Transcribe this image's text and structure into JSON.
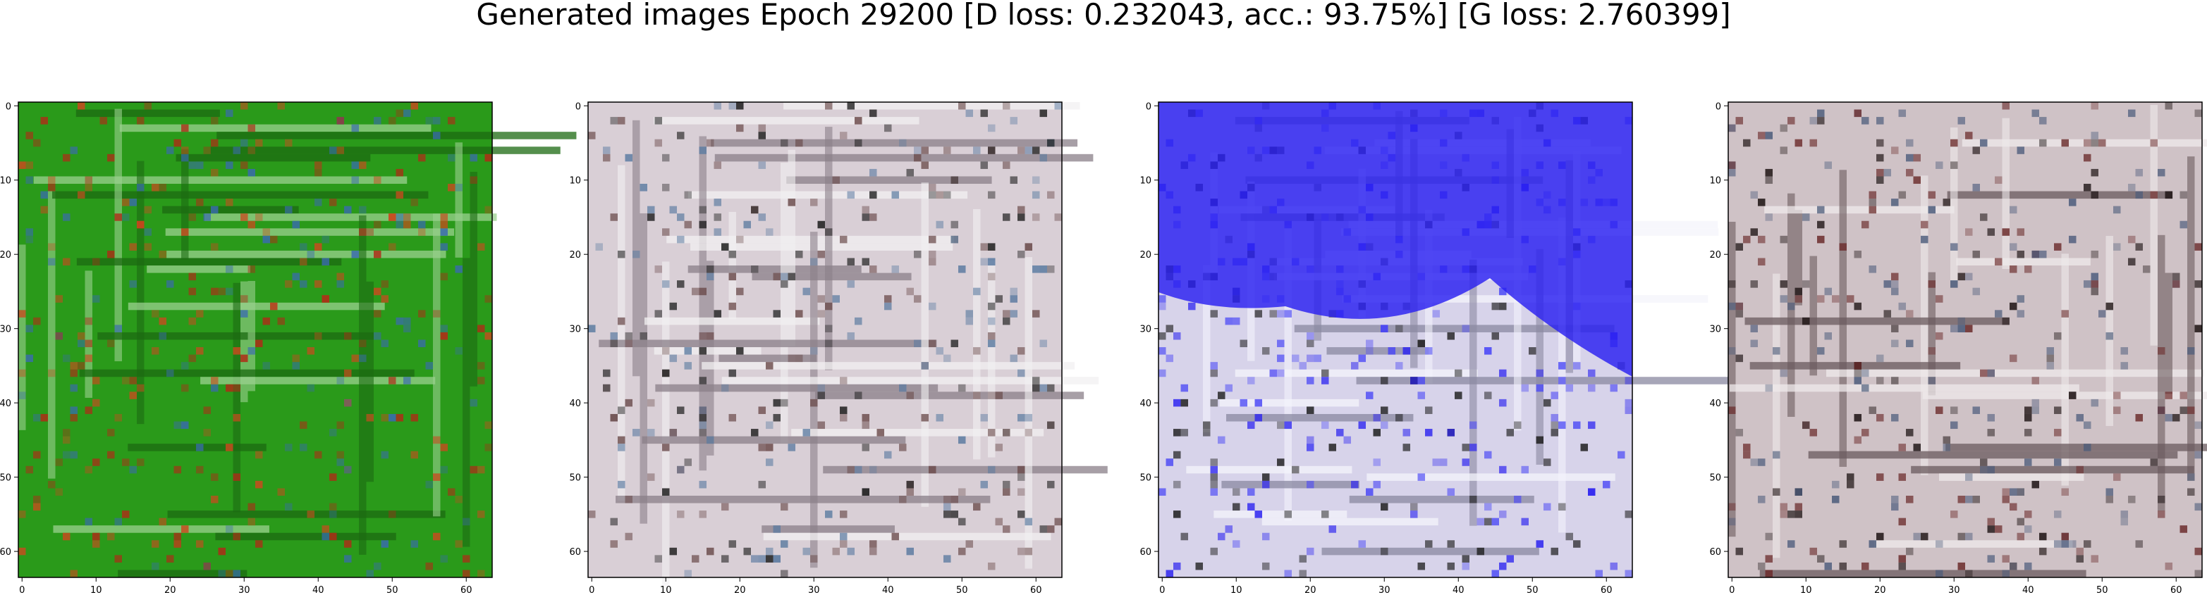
{
  "title": "Generated images Epoch 29200 [D loss: 0.232043, acc.: 93.75%] [G loss: 2.760399]",
  "axis_ticks": {
    "x": [
      "0",
      "10",
      "20",
      "30",
      "40",
      "50",
      "60"
    ],
    "y": [
      "0",
      "10",
      "20",
      "30",
      "40",
      "50",
      "60"
    ],
    "range": [
      0,
      64
    ]
  },
  "panels": [
    {
      "image_name": "generated-image-1",
      "base_color": "#2a9a1a",
      "grid_color": "#1c6a12",
      "line_color": "#9bd08f",
      "accent_colors": [
        "#b02a16",
        "#c94a1e",
        "#3a6ab0"
      ]
    },
    {
      "image_name": "generated-image-2",
      "base_color": "#d9cfd6",
      "grid_color": "#8a7f88",
      "line_color": "#f2f0f2",
      "accent_colors": [
        "#1a1a1a",
        "#6a4a4a",
        "#5a7aa0"
      ]
    },
    {
      "image_name": "generated-image-3",
      "base_color": "#d7d3ea",
      "grid_color": "#8a88a0",
      "line_color": "#f4f4fb",
      "accent_colors": [
        "#2b22f0",
        "#4b48f6",
        "#1a1a1a"
      ]
    },
    {
      "image_name": "generated-image-4",
      "base_color": "#cfc2c6",
      "grid_color": "#6a5a5e",
      "line_color": "#efe9eb",
      "accent_colors": [
        "#1a1010",
        "#6a2a2a",
        "#4a5a7a"
      ]
    }
  ]
}
